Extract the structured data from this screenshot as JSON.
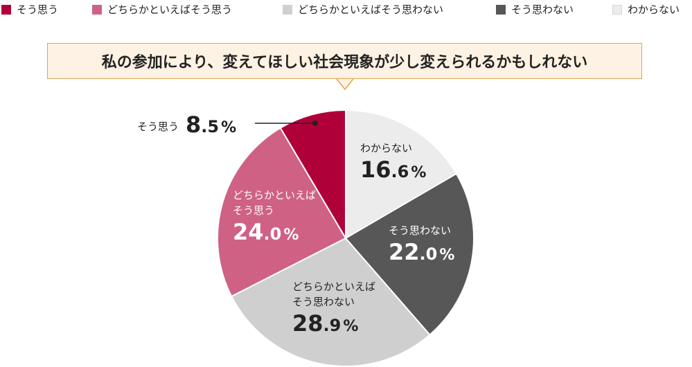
{
  "title": "私の参加により、変えてほしい社会現象が少し変えられるかもしれない",
  "legend": {
    "items": [
      {
        "label": "そう思う",
        "color": "#b0003a"
      },
      {
        "label": "どちらかといえばそう思う",
        "color": "#cf6185"
      },
      {
        "label": "どちらかといえばそう思わない",
        "color": "#cfcfcf"
      },
      {
        "label": "そう思わない",
        "color": "#575757"
      },
      {
        "label": "わからない",
        "color": "#ececec"
      }
    ]
  },
  "chart_data": {
    "type": "pie",
    "categories": [
      "わからない",
      "そう思わない",
      "どちらかといえばそう思わない",
      "どちらかといえばそう思う",
      "そう思う"
    ],
    "values": [
      16.6,
      22.0,
      28.9,
      24.0,
      8.5
    ],
    "colors": [
      "#ececec",
      "#575757",
      "#cfcfcf",
      "#cf6185",
      "#b0003a"
    ],
    "labels": [
      {
        "line1": "わからない",
        "line2": "",
        "int": "16",
        "dec": ".6",
        "pc": "%"
      },
      {
        "line1": "そう思わない",
        "line2": "",
        "int": "22",
        "dec": ".0",
        "pc": "%"
      },
      {
        "line1": "どちらかといえば",
        "line2": "そう思わない",
        "int": "28",
        "dec": ".9",
        "pc": "%"
      },
      {
        "line1": "どちらかといえば",
        "line2": "そう思う",
        "int": "24",
        "dec": ".0",
        "pc": "%"
      },
      {
        "line1": "そう思う",
        "line2": "",
        "int": "8",
        "dec": ".5",
        "pc": "%"
      }
    ],
    "start": "top",
    "direction": "clockwise",
    "legend_position": "top"
  }
}
